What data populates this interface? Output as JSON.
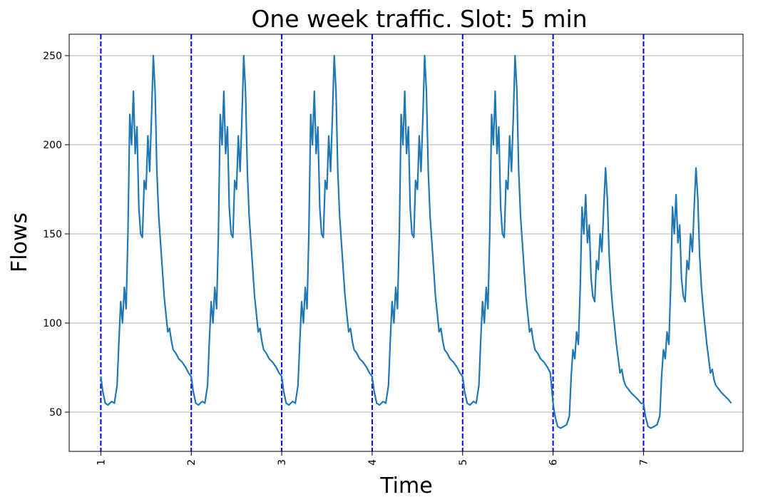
{
  "chart_data": {
    "type": "line",
    "title": "One week traffic. Slot: 5 min",
    "xlabel": "Time",
    "ylabel": "Flows",
    "xlim": [
      0.65,
      8.1
    ],
    "ylim": [
      28,
      262
    ],
    "yticks": [
      50,
      100,
      150,
      200,
      250
    ],
    "xticks": [
      1,
      2,
      3,
      4,
      5,
      6,
      7
    ],
    "day_markers": [
      1,
      2,
      3,
      4,
      5,
      6,
      7
    ],
    "grid": "horizontal",
    "series": [
      {
        "color": "#1f77b4",
        "x": [
          1.0,
          1.02,
          1.05,
          1.08,
          1.12,
          1.15,
          1.18,
          1.2,
          1.22,
          1.24,
          1.26,
          1.28,
          1.3,
          1.32,
          1.34,
          1.36,
          1.38,
          1.4,
          1.42,
          1.44,
          1.46,
          1.48,
          1.5,
          1.52,
          1.54,
          1.56,
          1.58,
          1.6,
          1.62,
          1.64,
          1.66,
          1.68,
          1.7,
          1.72,
          1.74,
          1.76,
          1.78,
          1.8,
          1.83,
          1.86,
          1.9,
          1.94,
          1.97,
          2.0,
          2.02,
          2.05,
          2.08,
          2.12,
          2.15,
          2.18,
          2.2,
          2.22,
          2.24,
          2.26,
          2.28,
          2.3,
          2.32,
          2.34,
          2.36,
          2.38,
          2.4,
          2.42,
          2.44,
          2.46,
          2.48,
          2.5,
          2.52,
          2.54,
          2.56,
          2.58,
          2.6,
          2.62,
          2.64,
          2.66,
          2.68,
          2.7,
          2.72,
          2.74,
          2.76,
          2.78,
          2.8,
          2.83,
          2.86,
          2.9,
          2.94,
          2.97,
          3.0,
          3.02,
          3.05,
          3.08,
          3.12,
          3.15,
          3.18,
          3.2,
          3.22,
          3.24,
          3.26,
          3.28,
          3.3,
          3.32,
          3.34,
          3.36,
          3.38,
          3.4,
          3.42,
          3.44,
          3.46,
          3.48,
          3.5,
          3.52,
          3.54,
          3.56,
          3.58,
          3.6,
          3.62,
          3.64,
          3.66,
          3.68,
          3.7,
          3.72,
          3.74,
          3.76,
          3.78,
          3.8,
          3.83,
          3.86,
          3.9,
          3.94,
          3.97,
          4.0,
          4.02,
          4.05,
          4.08,
          4.12,
          4.15,
          4.18,
          4.2,
          4.22,
          4.24,
          4.26,
          4.28,
          4.3,
          4.32,
          4.34,
          4.36,
          4.38,
          4.4,
          4.42,
          4.44,
          4.46,
          4.48,
          4.5,
          4.52,
          4.54,
          4.56,
          4.58,
          4.6,
          4.62,
          4.64,
          4.66,
          4.68,
          4.7,
          4.72,
          4.74,
          4.76,
          4.78,
          4.8,
          4.83,
          4.86,
          4.9,
          4.94,
          4.97,
          5.0,
          5.02,
          5.05,
          5.08,
          5.12,
          5.15,
          5.18,
          5.2,
          5.22,
          5.24,
          5.26,
          5.28,
          5.3,
          5.32,
          5.34,
          5.36,
          5.38,
          5.4,
          5.42,
          5.44,
          5.46,
          5.48,
          5.5,
          5.52,
          5.54,
          5.56,
          5.58,
          5.6,
          5.62,
          5.64,
          5.66,
          5.68,
          5.7,
          5.72,
          5.74,
          5.76,
          5.78,
          5.8,
          5.83,
          5.86,
          5.9,
          5.94,
          5.97,
          6.0,
          6.02,
          6.05,
          6.08,
          6.12,
          6.15,
          6.18,
          6.2,
          6.22,
          6.24,
          6.26,
          6.28,
          6.3,
          6.32,
          6.34,
          6.36,
          6.38,
          6.4,
          6.42,
          6.44,
          6.46,
          6.48,
          6.5,
          6.52,
          6.54,
          6.56,
          6.58,
          6.6,
          6.62,
          6.64,
          6.66,
          6.68,
          6.7,
          6.72,
          6.74,
          6.76,
          6.78,
          6.8,
          6.83,
          6.86,
          6.9,
          6.94,
          6.97,
          7.0,
          7.02,
          7.05,
          7.08,
          7.12,
          7.15,
          7.18,
          7.2,
          7.22,
          7.24,
          7.26,
          7.28,
          7.3,
          7.32,
          7.34,
          7.36,
          7.38,
          7.4,
          7.42,
          7.44,
          7.46,
          7.48,
          7.5,
          7.52,
          7.54,
          7.56,
          7.58,
          7.6,
          7.62,
          7.64,
          7.66,
          7.68,
          7.7,
          7.72,
          7.74,
          7.76,
          7.78,
          7.8,
          7.83,
          7.86,
          7.9,
          7.94,
          7.97
        ],
        "y": [
          70,
          62,
          55,
          54,
          56,
          55,
          65,
          90,
          112,
          100,
          120,
          108,
          150,
          217,
          200,
          230,
          195,
          210,
          165,
          150,
          148,
          180,
          175,
          205,
          185,
          215,
          250,
          230,
          185,
          160,
          145,
          130,
          115,
          105,
          95,
          97,
          90,
          85,
          83,
          80,
          78,
          75,
          72,
          70,
          62,
          55,
          54,
          56,
          55,
          65,
          90,
          112,
          100,
          120,
          108,
          150,
          217,
          200,
          230,
          195,
          210,
          165,
          150,
          148,
          180,
          175,
          205,
          185,
          215,
          250,
          230,
          185,
          160,
          145,
          130,
          115,
          105,
          95,
          97,
          90,
          85,
          83,
          80,
          78,
          75,
          72,
          70,
          62,
          55,
          54,
          56,
          55,
          65,
          90,
          112,
          100,
          120,
          108,
          150,
          217,
          200,
          230,
          195,
          210,
          165,
          150,
          148,
          180,
          175,
          205,
          185,
          215,
          250,
          230,
          185,
          160,
          145,
          130,
          115,
          105,
          95,
          97,
          90,
          85,
          83,
          80,
          78,
          75,
          72,
          70,
          62,
          55,
          54,
          56,
          55,
          65,
          90,
          112,
          100,
          120,
          108,
          150,
          217,
          200,
          230,
          195,
          210,
          165,
          150,
          148,
          180,
          175,
          205,
          185,
          215,
          250,
          230,
          185,
          160,
          145,
          130,
          115,
          105,
          95,
          97,
          90,
          85,
          83,
          80,
          78,
          75,
          72,
          70,
          62,
          55,
          54,
          56,
          55,
          65,
          90,
          112,
          100,
          120,
          108,
          150,
          217,
          200,
          230,
          195,
          210,
          165,
          150,
          148,
          180,
          175,
          205,
          185,
          215,
          250,
          230,
          185,
          160,
          145,
          130,
          115,
          105,
          95,
          97,
          90,
          85,
          83,
          80,
          78,
          75,
          72,
          55,
          48,
          42,
          41,
          42,
          43,
          48,
          70,
          85,
          80,
          95,
          88,
          120,
          165,
          150,
          172,
          145,
          155,
          125,
          115,
          112,
          135,
          130,
          150,
          140,
          165,
          187,
          170,
          138,
          120,
          108,
          98,
          88,
          80,
          72,
          74,
          68,
          65,
          63,
          61,
          59,
          57,
          55,
          55,
          48,
          42,
          41,
          42,
          43,
          48,
          70,
          85,
          80,
          95,
          88,
          120,
          165,
          150,
          172,
          145,
          155,
          125,
          115,
          112,
          135,
          130,
          150,
          140,
          165,
          187,
          170,
          138,
          120,
          108,
          98,
          88,
          80,
          72,
          74,
          68,
          65,
          63,
          61,
          59,
          57,
          55
        ]
      }
    ]
  }
}
